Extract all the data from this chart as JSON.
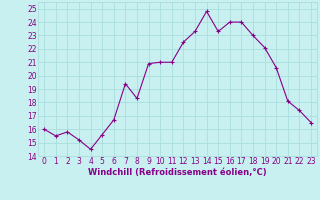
{
  "x": [
    0,
    1,
    2,
    3,
    4,
    5,
    6,
    7,
    8,
    9,
    10,
    11,
    12,
    13,
    14,
    15,
    16,
    17,
    18,
    19,
    20,
    21,
    22,
    23
  ],
  "y": [
    16.0,
    15.5,
    15.8,
    15.2,
    14.5,
    15.6,
    16.7,
    19.4,
    18.3,
    20.9,
    21.0,
    21.0,
    22.5,
    23.3,
    24.8,
    23.3,
    24.0,
    24.0,
    23.0,
    22.1,
    20.6,
    18.1,
    17.4,
    16.5
  ],
  "line_color": "#880088",
  "marker_color": "#880088",
  "bg_color": "#c8f0f0",
  "grid_color": "#aadddd",
  "xlabel": "Windchill (Refroidissement éolien,°C)",
  "xlim": [
    -0.5,
    23.5
  ],
  "ylim": [
    14,
    25.5
  ],
  "yticks": [
    14,
    15,
    16,
    17,
    18,
    19,
    20,
    21,
    22,
    23,
    24,
    25
  ],
  "xticks": [
    0,
    1,
    2,
    3,
    4,
    5,
    6,
    7,
    8,
    9,
    10,
    11,
    12,
    13,
    14,
    15,
    16,
    17,
    18,
    19,
    20,
    21,
    22,
    23
  ],
  "label_fontsize": 6.0,
  "tick_fontsize": 5.5
}
